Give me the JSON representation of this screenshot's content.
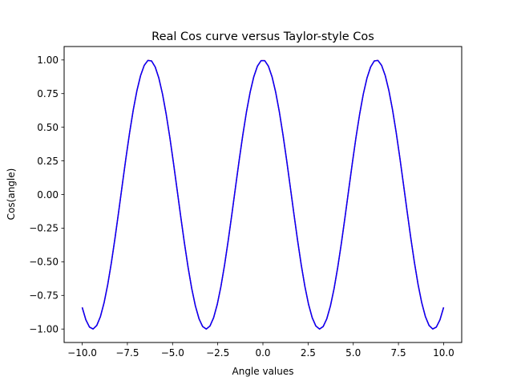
{
  "chart_data": {
    "type": "line",
    "title": "Real Cos curve versus Taylor-style Cos",
    "xlabel": "Angle values",
    "ylabel": "Cos(angle)",
    "xlim": [
      -11.0,
      11.0
    ],
    "ylim": [
      -1.1,
      1.1
    ],
    "xticks": [
      -10.0,
      -7.5,
      -5.0,
      -2.5,
      0.0,
      2.5,
      5.0,
      7.5,
      10.0
    ],
    "xtick_labels": [
      "−10.0",
      "−7.5",
      "−5.0",
      "−2.5",
      "0.0",
      "2.5",
      "5.0",
      "7.5",
      "10.0"
    ],
    "yticks": [
      -1.0,
      -0.75,
      -0.5,
      -0.25,
      0.0,
      0.25,
      0.5,
      0.75,
      1.0
    ],
    "ytick_labels": [
      "−1.00",
      "−0.75",
      "−0.50",
      "−0.25",
      "0.00",
      "0.25",
      "0.50",
      "0.75",
      "1.00"
    ],
    "grid": false,
    "legend": "none",
    "x_range": [
      -10,
      10
    ],
    "num_points": 100,
    "series": [
      {
        "function": "cos",
        "color": "#ff0000"
      },
      {
        "function": "cos",
        "color": "#0000ff"
      }
    ]
  }
}
